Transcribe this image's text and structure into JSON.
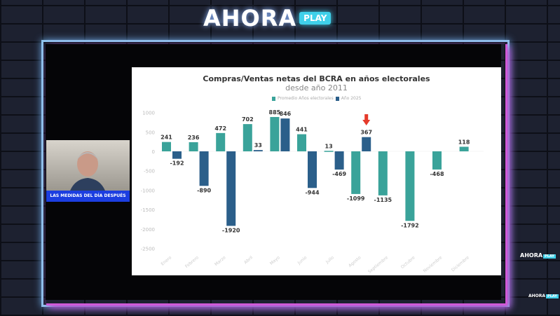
{
  "branding": {
    "logo_main": "AHORA",
    "logo_badge": "PLAY",
    "corner_logo": "AHORA",
    "corner_badge": "PLAY"
  },
  "camera": {
    "lower_third": "LAS MEDIDAS DEL DÍA DESPUÉS"
  },
  "chart_data": {
    "type": "bar",
    "title": "Compras/Ventas netas del BCRA en años electorales",
    "subtitle": "desde año 2011",
    "legend_position": "top",
    "categories": [
      "Enero",
      "Febrero",
      "Marzo",
      "Abril",
      "Mayo",
      "Junio",
      "Julio",
      "Agosto",
      "Septiembre",
      "Octubre",
      "Noviembre",
      "Diciembre"
    ],
    "series": [
      {
        "name": "Promedio Años electorales",
        "color": "#3aa39a",
        "values": [
          241,
          236,
          472,
          702,
          885,
          441,
          13,
          -1099,
          -1135,
          -1792,
          -468,
          118
        ]
      },
      {
        "name": "Año 2025",
        "color": "#2b5f8a",
        "values": [
          -192,
          -890,
          -1920,
          33,
          846,
          -944,
          -469,
          367,
          null,
          null,
          null,
          null
        ]
      }
    ],
    "yticks": [
      1000,
      500,
      0,
      -500,
      -1000,
      -1500,
      -2000,
      -2500
    ],
    "ylim": [
      -2500,
      1000
    ],
    "grid": false,
    "annotation": {
      "type": "red-arrow",
      "category": "Agosto",
      "series": "Año 2025",
      "color": "#e53a2a"
    }
  }
}
